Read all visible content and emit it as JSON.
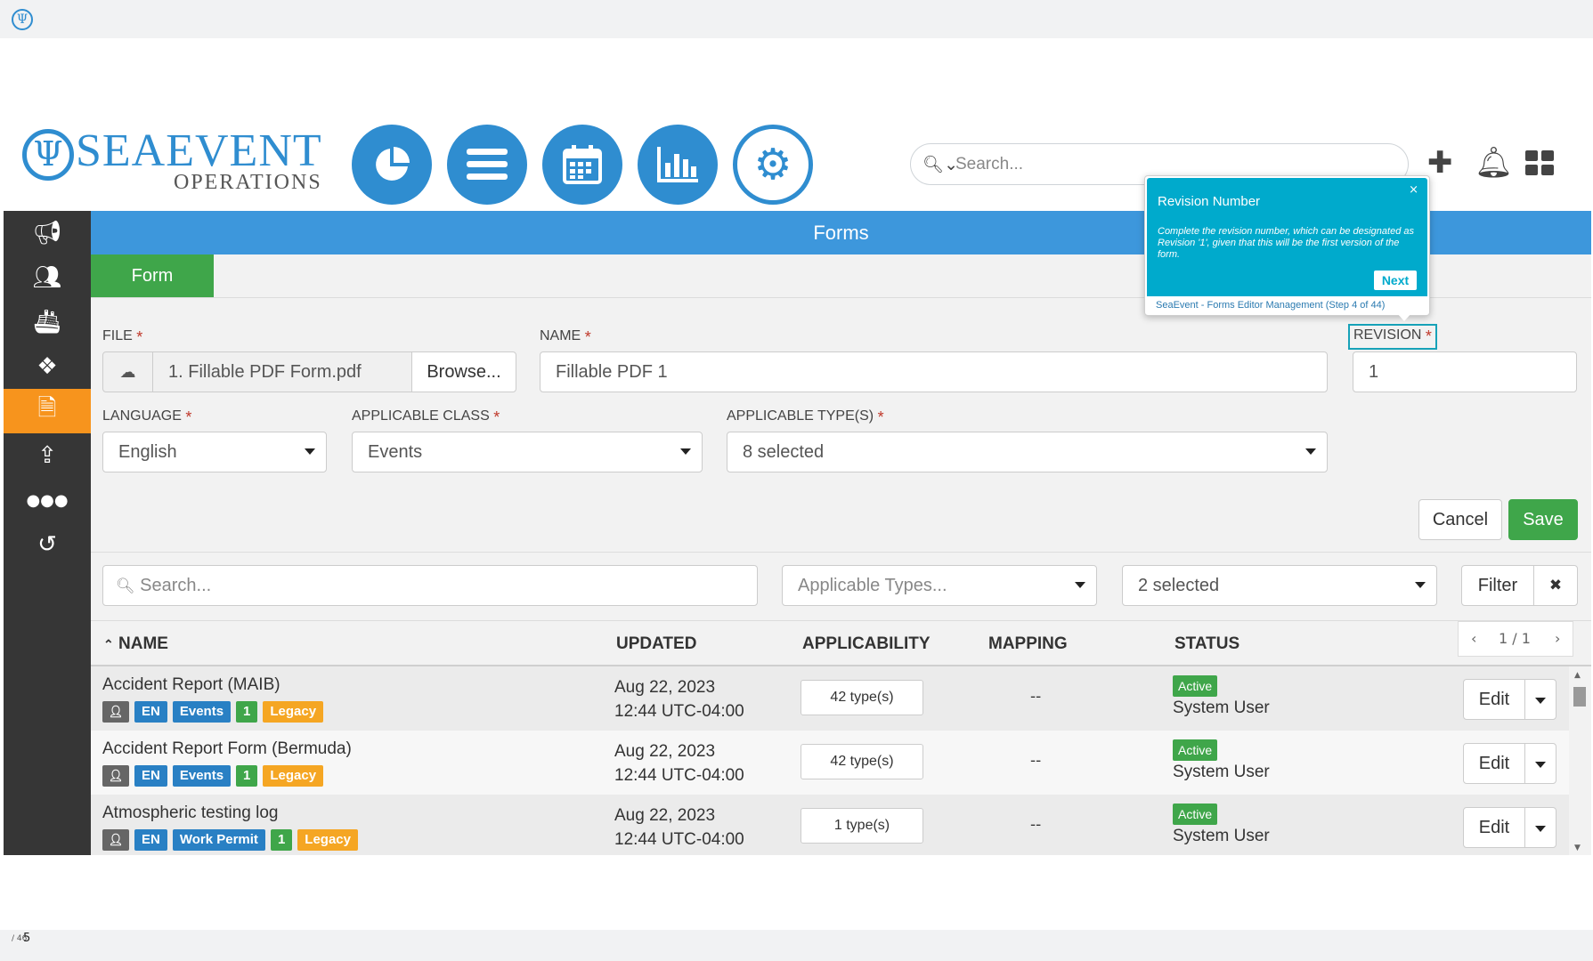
{
  "presentation": {
    "page_current": "5",
    "page_total": "/ 46"
  },
  "header": {
    "logo_mark": "Ψ",
    "brand": "SEAEVENT",
    "brand_sub": "OPERATIONS",
    "search_placeholder": "Search...",
    "nav": [
      "dashboard-icon",
      "menu-icon",
      "calendar-icon",
      "chart-icon",
      "gear-icon"
    ]
  },
  "sidebar": {
    "items": [
      {
        "icon": "megaphone-icon",
        "glyph": "📢"
      },
      {
        "icon": "people-icon",
        "glyph": "👥"
      },
      {
        "icon": "ship-icon",
        "glyph": "🚢"
      },
      {
        "icon": "cubes-icon",
        "glyph": "⬡"
      },
      {
        "icon": "document-icon",
        "glyph": "🗎",
        "active": true
      },
      {
        "icon": "upload-icon",
        "glyph": "⇪"
      },
      {
        "icon": "more-icon",
        "glyph": "•••"
      },
      {
        "icon": "history-icon",
        "glyph": "↺"
      }
    ]
  },
  "panel": {
    "title": "Forms",
    "tab": "Form",
    "labels": {
      "file": "FILE",
      "name": "NAME",
      "revision": "REVISION",
      "language": "LANGUAGE",
      "applicable_class": "APPLICABLE CLASS",
      "applicable_types": "APPLICABLE TYPE(S)"
    },
    "required_mark": "*",
    "values": {
      "file": "1. Fillable PDF Form.pdf",
      "browse": "Browse...",
      "name": "Fillable PDF 1",
      "revision": "1",
      "language": "English",
      "applicable_class": "Events",
      "applicable_types": "8 selected"
    },
    "buttons": {
      "cancel": "Cancel",
      "save": "Save"
    }
  },
  "table_filters": {
    "search_placeholder": "Search...",
    "types_placeholder": "Applicable Types...",
    "status_select": "2 selected",
    "filter": "Filter",
    "clear": "✖"
  },
  "table": {
    "headers": {
      "name": "NAME",
      "updated": "UPDATED",
      "applicability": "APPLICABILITY",
      "mapping": "MAPPING",
      "status": "STATUS"
    },
    "sort_mark": "⌃",
    "pager": {
      "prev": "‹",
      "label": "1 / 1",
      "next": "›"
    },
    "rows": [
      {
        "name": "Accident Report (MAIB)",
        "tags": [
          "EN",
          "Events",
          "1",
          "Legacy"
        ],
        "date": "Aug 22, 2023",
        "time": "12:44 UTC-04:00",
        "types": "42 type(s)",
        "mapping": "--",
        "status": "Active",
        "user": "System User",
        "edit": "Edit"
      },
      {
        "name": "Accident Report Form (Bermuda)",
        "tags": [
          "EN",
          "Events",
          "1",
          "Legacy"
        ],
        "date": "Aug 22, 2023",
        "time": "12:44 UTC-04:00",
        "types": "42 type(s)",
        "mapping": "--",
        "status": "Active",
        "user": "System User",
        "edit": "Edit"
      },
      {
        "name": "Atmospheric testing log",
        "tags": [
          "EN",
          "Work Permit",
          "1",
          "Legacy"
        ],
        "date": "Aug 22, 2023",
        "time": "12:44 UTC-04:00",
        "types": "1 type(s)",
        "mapping": "--",
        "status": "Active",
        "user": "System User",
        "edit": "Edit"
      }
    ]
  },
  "tooltip": {
    "title": "Revision Number",
    "text": "Complete the revision number, which can be designated as Revision '1', given that this will be the first version of the form.",
    "close": "×",
    "next": "Next",
    "footer": "SeaEvent - Forms Editor Management (Step 4 of 44)"
  },
  "colors": {
    "primary": "#3d97dc",
    "brand_blue": "#2f8dd0",
    "success": "#3fa64a",
    "accent": "#f7941d",
    "tooltip": "#00aacc",
    "sidebar": "#363636"
  }
}
